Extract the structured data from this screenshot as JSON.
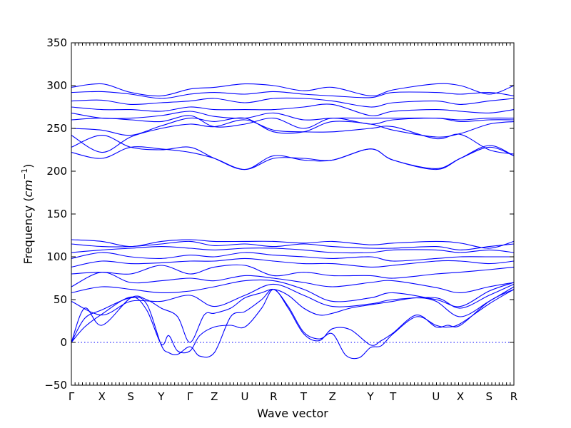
{
  "chart_data": {
    "type": "line",
    "xlabel": "Wave vector",
    "ylabel_text": "Frequency (",
    "ylabel_unit": "cm",
    "ylabel_exp": "−1",
    "ylabel_close": ")",
    "ylim": [
      -50,
      350
    ],
    "yticks": [
      -50,
      0,
      50,
      100,
      150,
      200,
      250,
      300,
      350
    ],
    "xlim": [
      0,
      1
    ],
    "zero_line": true,
    "grid": false,
    "high_symmetry_points": [
      {
        "label": "Γ",
        "x": 0.0
      },
      {
        "label": "X",
        "x": 0.069
      },
      {
        "label": "S",
        "x": 0.134
      },
      {
        "label": "Y",
        "x": 0.203
      },
      {
        "label": "Γ",
        "x": 0.268
      },
      {
        "label": "Z",
        "x": 0.323
      },
      {
        "label": "U",
        "x": 0.392
      },
      {
        "label": "R",
        "x": 0.457
      },
      {
        "label": "T",
        "x": 0.525
      },
      {
        "label": "Z",
        "x": 0.59
      },
      {
        "label": "Y",
        "x": 0.676
      },
      {
        "label": "T",
        "x": 0.727
      },
      {
        "label": "U",
        "x": 0.824
      },
      {
        "label": "X",
        "x": 0.879
      },
      {
        "label": "S",
        "x": 0.944
      },
      {
        "label": "R",
        "x": 1.0
      }
    ],
    "series": [
      {
        "x": [
          0,
          0.03,
          0.069,
          0.134,
          0.17,
          0.203,
          0.22,
          0.24,
          0.268,
          0.29,
          0.323,
          0.36,
          0.392,
          0.43,
          0.457,
          0.49,
          0.525,
          0.56,
          0.59,
          0.63,
          0.676,
          0.7,
          0.727,
          0.78,
          0.824,
          0.85,
          0.879,
          0.944,
          1.0
        ],
        "y": [
          0,
          18,
          33,
          53,
          38,
          -2,
          8,
          -10,
          -10,
          8,
          18,
          20,
          18,
          40,
          62,
          40,
          10,
          2,
          16,
          15,
          -3,
          2,
          11,
          32,
          18,
          20,
          20,
          48,
          62
        ]
      },
      {
        "x": [
          0,
          0.03,
          0.069,
          0.134,
          0.17,
          0.203,
          0.22,
          0.24,
          0.268,
          0.29,
          0.323,
          0.36,
          0.392,
          0.43,
          0.457,
          0.49,
          0.525,
          0.56,
          0.59,
          0.62,
          0.65,
          0.676,
          0.7,
          0.727,
          0.78,
          0.824,
          0.85,
          0.879,
          0.944,
          1.0
        ],
        "y": [
          0,
          28,
          38,
          52,
          45,
          -3,
          -12,
          -14,
          -5,
          -16,
          -12,
          30,
          36,
          50,
          62,
          42,
          12,
          4,
          10,
          -15,
          -18,
          -6,
          -4,
          10,
          30,
          20,
          18,
          22,
          45,
          62
        ]
      },
      {
        "x": [
          0,
          0.03,
          0.069,
          0.134,
          0.17,
          0.203,
          0.24,
          0.268,
          0.3,
          0.323,
          0.36,
          0.392,
          0.43,
          0.457,
          0.49,
          0.525,
          0.56,
          0.59,
          0.63,
          0.676,
          0.727,
          0.78,
          0.824,
          0.879,
          0.944,
          1.0
        ],
        "y": [
          0,
          40,
          20,
          52,
          50,
          40,
          30,
          0,
          32,
          34,
          40,
          52,
          58,
          62,
          55,
          40,
          32,
          34,
          40,
          44,
          48,
          52,
          48,
          30,
          48,
          65
        ]
      },
      {
        "x": [
          0,
          0.069,
          0.134,
          0.203,
          0.268,
          0.323,
          0.392,
          0.457,
          0.525,
          0.59,
          0.676,
          0.727,
          0.824,
          0.879,
          0.944,
          1.0
        ],
        "y": [
          48,
          32,
          48,
          48,
          55,
          42,
          55,
          68,
          55,
          42,
          45,
          50,
          52,
          40,
          55,
          68
        ]
      },
      {
        "x": [
          0,
          0.069,
          0.134,
          0.203,
          0.268,
          0.323,
          0.392,
          0.457,
          0.525,
          0.59,
          0.676,
          0.727,
          0.824,
          0.879,
          0.944,
          1.0
        ],
        "y": [
          58,
          65,
          62,
          58,
          60,
          65,
          72,
          72,
          62,
          48,
          52,
          58,
          50,
          42,
          60,
          70
        ]
      },
      {
        "x": [
          0,
          0.069,
          0.134,
          0.203,
          0.268,
          0.323,
          0.392,
          0.457,
          0.525,
          0.59,
          0.676,
          0.727,
          0.824,
          0.879,
          0.944,
          1.0
        ],
        "y": [
          65,
          82,
          70,
          72,
          75,
          72,
          78,
          75,
          70,
          65,
          70,
          72,
          64,
          58,
          65,
          70
        ]
      },
      {
        "x": [
          0,
          0.069,
          0.134,
          0.203,
          0.268,
          0.323,
          0.392,
          0.457,
          0.525,
          0.59,
          0.676,
          0.727,
          0.824,
          0.879,
          0.944,
          1.0
        ],
        "y": [
          80,
          82,
          80,
          90,
          80,
          88,
          90,
          78,
          82,
          78,
          78,
          75,
          80,
          82,
          85,
          88
        ]
      },
      {
        "x": [
          0,
          0.069,
          0.134,
          0.203,
          0.268,
          0.323,
          0.392,
          0.457,
          0.525,
          0.59,
          0.676,
          0.727,
          0.824,
          0.879,
          0.944,
          1.0
        ],
        "y": [
          88,
          95,
          92,
          93,
          95,
          95,
          98,
          95,
          92,
          92,
          88,
          90,
          95,
          95,
          92,
          95
        ]
      },
      {
        "x": [
          0,
          0.069,
          0.134,
          0.203,
          0.268,
          0.323,
          0.392,
          0.457,
          0.525,
          0.59,
          0.676,
          0.727,
          0.824,
          0.879,
          0.944,
          1.0
        ],
        "y": [
          98,
          105,
          100,
          98,
          102,
          100,
          105,
          102,
          100,
          98,
          100,
          95,
          98,
          100,
          100,
          100
        ]
      },
      {
        "x": [
          0,
          0.069,
          0.134,
          0.203,
          0.268,
          0.323,
          0.392,
          0.457,
          0.525,
          0.59,
          0.676,
          0.727,
          0.824,
          0.879,
          0.944,
          1.0
        ],
        "y": [
          105,
          108,
          110,
          112,
          110,
          108,
          110,
          110,
          108,
          105,
          105,
          108,
          108,
          105,
          108,
          105
        ]
      },
      {
        "x": [
          0,
          0.069,
          0.134,
          0.203,
          0.268,
          0.323,
          0.392,
          0.457,
          0.525,
          0.59,
          0.676,
          0.727,
          0.824,
          0.879,
          0.944,
          1.0
        ],
        "y": [
          115,
          112,
          112,
          115,
          118,
          113,
          115,
          112,
          115,
          112,
          110,
          110,
          112,
          108,
          112,
          115
        ]
      },
      {
        "x": [
          0,
          0.069,
          0.134,
          0.203,
          0.268,
          0.323,
          0.392,
          0.457,
          0.525,
          0.59,
          0.676,
          0.727,
          0.824,
          0.879,
          0.944,
          1.0
        ],
        "y": [
          120,
          118,
          112,
          118,
          120,
          118,
          118,
          118,
          116,
          118,
          114,
          116,
          118,
          116,
          110,
          118
        ]
      },
      {
        "x": [
          0,
          0.069,
          0.134,
          0.203,
          0.268,
          0.323,
          0.392,
          0.457,
          0.525,
          0.59,
          0.676,
          0.727,
          0.824,
          0.879,
          0.944,
          1.0
        ],
        "y": [
          228,
          242,
          228,
          225,
          228,
          215,
          202,
          218,
          213,
          213,
          226,
          213,
          202,
          215,
          230,
          218
        ]
      },
      {
        "x": [
          0,
          0.069,
          0.134,
          0.203,
          0.268,
          0.323,
          0.392,
          0.457,
          0.525,
          0.59,
          0.676,
          0.727,
          0.824,
          0.879,
          0.944,
          1.0
        ],
        "y": [
          222,
          215,
          228,
          226,
          222,
          215,
          202,
          215,
          215,
          213,
          226,
          213,
          203,
          215,
          228,
          218
        ]
      },
      {
        "x": [
          0,
          0.069,
          0.134,
          0.203,
          0.268,
          0.323,
          0.392,
          0.457,
          0.525,
          0.59,
          0.676,
          0.727,
          0.824,
          0.879,
          0.944,
          1.0
        ],
        "y": [
          242,
          222,
          240,
          250,
          255,
          252,
          260,
          248,
          246,
          246,
          250,
          252,
          238,
          243,
          225,
          220
        ]
      },
      {
        "x": [
          0,
          0.069,
          0.134,
          0.203,
          0.268,
          0.323,
          0.392,
          0.457,
          0.525,
          0.59,
          0.676,
          0.727,
          0.824,
          0.879,
          0.944,
          1.0
        ],
        "y": [
          250,
          248,
          242,
          253,
          262,
          258,
          262,
          246,
          246,
          258,
          255,
          248,
          240,
          244,
          255,
          258
        ]
      },
      {
        "x": [
          0,
          0.069,
          0.134,
          0.203,
          0.268,
          0.323,
          0.392,
          0.457,
          0.525,
          0.59,
          0.676,
          0.727,
          0.824,
          0.879,
          0.944,
          1.0
        ],
        "y": [
          260,
          262,
          260,
          258,
          265,
          252,
          255,
          262,
          250,
          262,
          255,
          260,
          262,
          258,
          260,
          260
        ]
      },
      {
        "x": [
          0,
          0.069,
          0.134,
          0.203,
          0.268,
          0.323,
          0.392,
          0.457,
          0.525,
          0.59,
          0.676,
          0.727,
          0.824,
          0.879,
          0.944,
          1.0
        ],
        "y": [
          268,
          262,
          262,
          265,
          270,
          264,
          262,
          268,
          260,
          262,
          262,
          262,
          262,
          260,
          262,
          262
        ]
      },
      {
        "x": [
          0,
          0.069,
          0.134,
          0.203,
          0.268,
          0.323,
          0.392,
          0.457,
          0.525,
          0.59,
          0.676,
          0.727,
          0.824,
          0.879,
          0.944,
          1.0
        ],
        "y": [
          275,
          272,
          272,
          270,
          275,
          272,
          272,
          272,
          275,
          278,
          265,
          270,
          272,
          270,
          268,
          272
        ]
      },
      {
        "x": [
          0,
          0.069,
          0.134,
          0.203,
          0.268,
          0.323,
          0.392,
          0.457,
          0.525,
          0.59,
          0.676,
          0.727,
          0.824,
          0.879,
          0.944,
          1.0
        ],
        "y": [
          282,
          283,
          278,
          280,
          282,
          285,
          280,
          285,
          285,
          282,
          275,
          280,
          282,
          278,
          282,
          285
        ]
      },
      {
        "x": [
          0,
          0.069,
          0.134,
          0.203,
          0.268,
          0.323,
          0.392,
          0.457,
          0.525,
          0.59,
          0.676,
          0.727,
          0.824,
          0.879,
          0.944,
          1.0
        ],
        "y": [
          292,
          293,
          290,
          285,
          290,
          292,
          290,
          293,
          290,
          288,
          286,
          292,
          292,
          290,
          292,
          288
        ]
      },
      {
        "x": [
          0,
          0.069,
          0.134,
          0.203,
          0.268,
          0.323,
          0.392,
          0.457,
          0.525,
          0.59,
          0.676,
          0.727,
          0.824,
          0.879,
          0.944,
          1.0
        ],
        "y": [
          298,
          302,
          292,
          288,
          296,
          298,
          302,
          300,
          294,
          298,
          288,
          295,
          302,
          300,
          290,
          300
        ]
      }
    ]
  }
}
